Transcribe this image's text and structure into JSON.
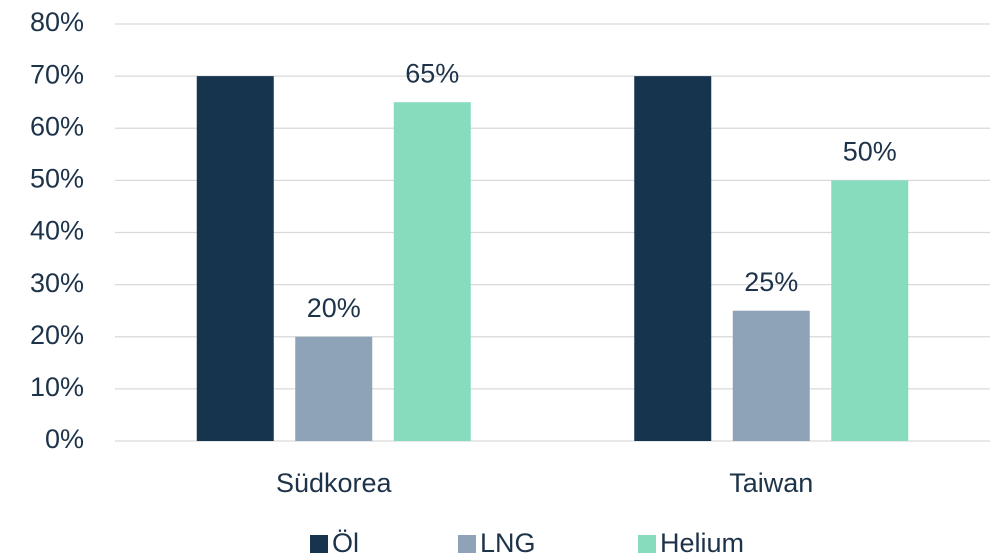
{
  "chart_data": {
    "type": "bar",
    "categories": [
      "Südkorea",
      "Taiwan"
    ],
    "series": [
      {
        "name": "Öl",
        "color": "#17344f",
        "values": [
          70,
          70
        ]
      },
      {
        "name": "LNG",
        "color": "#8fa3b8",
        "values": [
          20,
          25
        ],
        "value_labels": [
          "20%",
          "25%"
        ]
      },
      {
        "name": "Helium",
        "color": "#87dcbd",
        "values": [
          65,
          50
        ],
        "value_labels": [
          "65%",
          "50%"
        ]
      }
    ],
    "ylim": [
      0,
      80
    ],
    "yticks": [
      {
        "value": 0,
        "label": "0%"
      },
      {
        "value": 10,
        "label": "10%"
      },
      {
        "value": 20,
        "label": "20%"
      },
      {
        "value": 30,
        "label": "30%"
      },
      {
        "value": 40,
        "label": "40%"
      },
      {
        "value": 50,
        "label": "50%"
      },
      {
        "value": 60,
        "label": "60%"
      },
      {
        "value": 70,
        "label": "70%"
      },
      {
        "value": 80,
        "label": "80%"
      }
    ],
    "grid": true,
    "legend": "bottom"
  }
}
